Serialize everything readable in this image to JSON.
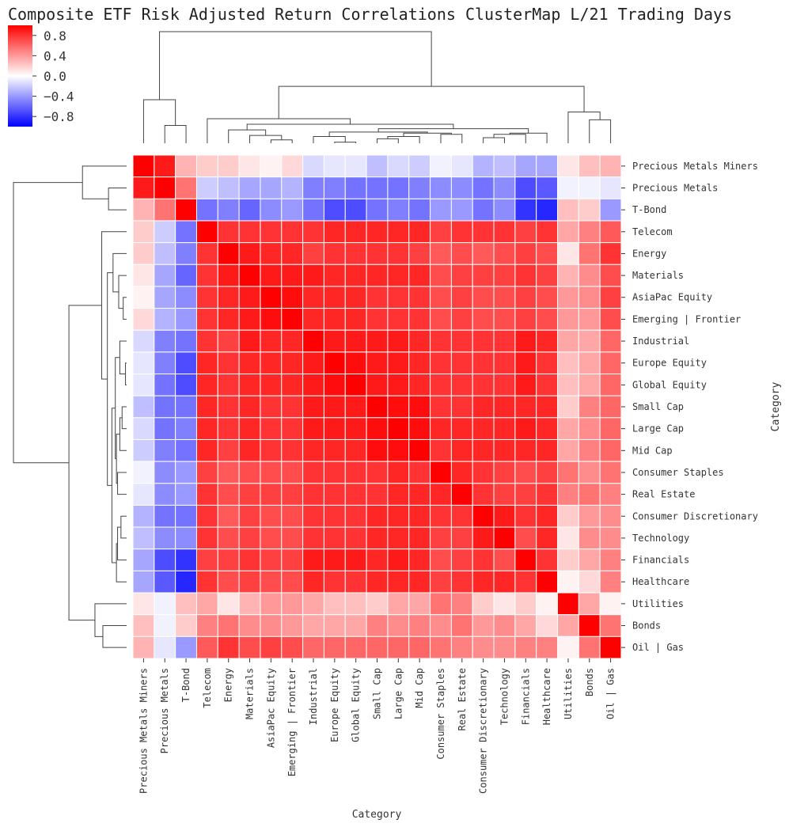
{
  "chart_data": {
    "type": "heatmap",
    "title": "Composite ETF Risk Adjusted Return Correlations ClusterMap L/21 Trading Days",
    "xlabel": "Category",
    "ylabel": "Category",
    "colormap": "bwr",
    "colors": {
      "low": "#0000ff",
      "mid": "#ffffff",
      "high": "#ff0000",
      "grid": "#ffffff",
      "dendrogram": "#444444"
    },
    "vmin": -1.0,
    "vmax": 1.0,
    "colorbar_ticks": [
      0.8,
      0.4,
      0.0,
      -0.4,
      -0.8
    ],
    "colorbar_tick_labels": [
      "0.8",
      "0.4",
      "0.0",
      "−0.4",
      "−0.8"
    ],
    "categories": [
      "Precious Metals Miners",
      "Precious Metals",
      "T-Bond",
      "Telecom",
      "Energy",
      "Materials",
      "AsiaPac Equity",
      "Emerging | Frontier",
      "Industrial",
      "Europe Equity",
      "Global Equity",
      "Small Cap",
      "Large Cap",
      "Mid Cap",
      "Consumer Staples",
      "Real Estate",
      "Consumer Discretionary",
      "Technology",
      "Financials",
      "Healthcare",
      "Utilities",
      "Bonds",
      "Oil | Gas"
    ],
    "values": [
      [
        1.0,
        0.9,
        0.3,
        0.2,
        0.2,
        0.1,
        0.05,
        0.15,
        -0.15,
        -0.1,
        -0.1,
        -0.25,
        -0.15,
        -0.2,
        -0.05,
        -0.1,
        -0.3,
        -0.25,
        -0.35,
        -0.35,
        0.1,
        0.25,
        0.3
      ],
      [
        0.9,
        1.0,
        0.55,
        -0.2,
        -0.25,
        -0.35,
        -0.35,
        -0.3,
        -0.5,
        -0.5,
        -0.55,
        -0.55,
        -0.55,
        -0.5,
        -0.45,
        -0.45,
        -0.55,
        -0.45,
        -0.7,
        -0.65,
        -0.05,
        -0.05,
        -0.1
      ],
      [
        0.3,
        0.55,
        1.0,
        -0.55,
        -0.5,
        -0.6,
        -0.45,
        -0.4,
        -0.55,
        -0.7,
        -0.7,
        -0.55,
        -0.5,
        -0.55,
        -0.4,
        -0.4,
        -0.55,
        -0.45,
        -0.8,
        -0.85,
        0.25,
        0.2,
        -0.4
      ],
      [
        0.2,
        -0.2,
        -0.55,
        1.0,
        0.8,
        0.8,
        0.8,
        0.8,
        0.8,
        0.85,
        0.85,
        0.85,
        0.85,
        0.85,
        0.75,
        0.8,
        0.8,
        0.8,
        0.75,
        0.8,
        0.35,
        0.5,
        0.65
      ],
      [
        0.2,
        -0.25,
        -0.5,
        0.8,
        1.0,
        0.9,
        0.85,
        0.85,
        0.75,
        0.8,
        0.8,
        0.8,
        0.8,
        0.75,
        0.65,
        0.7,
        0.65,
        0.7,
        0.75,
        0.7,
        0.1,
        0.55,
        0.8
      ],
      [
        0.1,
        -0.35,
        -0.6,
        0.8,
        0.9,
        1.0,
        0.9,
        0.9,
        0.9,
        0.85,
        0.85,
        0.85,
        0.85,
        0.85,
        0.7,
        0.75,
        0.75,
        0.75,
        0.8,
        0.75,
        0.3,
        0.45,
        0.7
      ],
      [
        0.05,
        -0.35,
        -0.45,
        0.8,
        0.85,
        0.9,
        1.0,
        0.95,
        0.85,
        0.85,
        0.85,
        0.8,
        0.8,
        0.8,
        0.7,
        0.75,
        0.7,
        0.7,
        0.75,
        0.7,
        0.4,
        0.45,
        0.75
      ],
      [
        0.15,
        -0.3,
        -0.4,
        0.8,
        0.85,
        0.9,
        0.95,
        1.0,
        0.85,
        0.85,
        0.85,
        0.8,
        0.8,
        0.8,
        0.7,
        0.75,
        0.7,
        0.7,
        0.75,
        0.7,
        0.4,
        0.4,
        0.7
      ],
      [
        -0.15,
        -0.5,
        -0.55,
        0.8,
        0.75,
        0.9,
        0.85,
        0.85,
        1.0,
        0.9,
        0.9,
        0.9,
        0.9,
        0.85,
        0.8,
        0.8,
        0.8,
        0.8,
        0.9,
        0.85,
        0.35,
        0.35,
        0.6
      ],
      [
        -0.1,
        -0.5,
        -0.7,
        0.85,
        0.8,
        0.85,
        0.85,
        0.85,
        0.9,
        1.0,
        0.95,
        0.9,
        0.9,
        0.85,
        0.8,
        0.8,
        0.8,
        0.8,
        0.9,
        0.8,
        0.25,
        0.35,
        0.6
      ],
      [
        -0.1,
        -0.55,
        -0.7,
        0.85,
        0.8,
        0.85,
        0.85,
        0.85,
        0.9,
        0.95,
        1.0,
        0.9,
        0.9,
        0.85,
        0.8,
        0.8,
        0.8,
        0.8,
        0.9,
        0.8,
        0.25,
        0.35,
        0.6
      ],
      [
        -0.25,
        -0.55,
        -0.55,
        0.85,
        0.8,
        0.85,
        0.8,
        0.8,
        0.9,
        0.9,
        0.9,
        1.0,
        0.95,
        0.95,
        0.8,
        0.8,
        0.85,
        0.85,
        0.85,
        0.85,
        0.2,
        0.5,
        0.6
      ],
      [
        -0.15,
        -0.55,
        -0.5,
        0.85,
        0.8,
        0.85,
        0.8,
        0.8,
        0.9,
        0.9,
        0.9,
        0.95,
        1.0,
        0.95,
        0.85,
        0.85,
        0.85,
        0.85,
        0.9,
        0.85,
        0.35,
        0.45,
        0.6
      ],
      [
        -0.2,
        -0.5,
        -0.55,
        0.85,
        0.75,
        0.85,
        0.8,
        0.8,
        0.85,
        0.85,
        0.85,
        0.95,
        0.95,
        1.0,
        0.8,
        0.85,
        0.85,
        0.85,
        0.85,
        0.85,
        0.35,
        0.5,
        0.6
      ],
      [
        -0.05,
        -0.45,
        -0.4,
        0.75,
        0.65,
        0.7,
        0.7,
        0.7,
        0.8,
        0.8,
        0.8,
        0.8,
        0.85,
        0.8,
        1.0,
        0.85,
        0.8,
        0.75,
        0.7,
        0.75,
        0.55,
        0.45,
        0.55
      ],
      [
        -0.1,
        -0.45,
        -0.4,
        0.8,
        0.7,
        0.75,
        0.75,
        0.75,
        0.8,
        0.8,
        0.8,
        0.8,
        0.85,
        0.85,
        0.85,
        1.0,
        0.8,
        0.75,
        0.75,
        0.8,
        0.5,
        0.55,
        0.5
      ],
      [
        -0.3,
        -0.55,
        -0.55,
        0.8,
        0.65,
        0.75,
        0.7,
        0.7,
        0.8,
        0.8,
        0.8,
        0.85,
        0.85,
        0.85,
        0.8,
        0.8,
        1.0,
        0.9,
        0.8,
        0.85,
        0.2,
        0.4,
        0.45
      ],
      [
        -0.25,
        -0.45,
        -0.45,
        0.8,
        0.7,
        0.75,
        0.7,
        0.7,
        0.8,
        0.8,
        0.8,
        0.85,
        0.85,
        0.85,
        0.75,
        0.75,
        0.9,
        1.0,
        0.7,
        0.85,
        0.1,
        0.45,
        0.45
      ],
      [
        -0.35,
        -0.7,
        -0.8,
        0.75,
        0.75,
        0.8,
        0.75,
        0.75,
        0.9,
        0.9,
        0.9,
        0.85,
        0.9,
        0.85,
        0.7,
        0.75,
        0.8,
        0.7,
        1.0,
        0.8,
        0.2,
        0.35,
        0.5
      ],
      [
        -0.35,
        -0.65,
        -0.85,
        0.8,
        0.7,
        0.75,
        0.7,
        0.7,
        0.85,
        0.8,
        0.8,
        0.85,
        0.85,
        0.85,
        0.75,
        0.8,
        0.85,
        0.85,
        0.8,
        1.0,
        0.05,
        0.15,
        0.5
      ],
      [
        0.1,
        -0.05,
        0.25,
        0.35,
        0.1,
        0.3,
        0.4,
        0.4,
        0.35,
        0.25,
        0.25,
        0.2,
        0.35,
        0.35,
        0.55,
        0.5,
        0.2,
        0.1,
        0.2,
        0.05,
        1.0,
        0.35,
        0.05
      ],
      [
        0.25,
        -0.05,
        0.2,
        0.5,
        0.55,
        0.45,
        0.45,
        0.4,
        0.35,
        0.35,
        0.35,
        0.5,
        0.45,
        0.5,
        0.45,
        0.55,
        0.4,
        0.45,
        0.35,
        0.15,
        0.35,
        1.0,
        0.55
      ],
      [
        0.3,
        -0.1,
        -0.4,
        0.65,
        0.8,
        0.7,
        0.75,
        0.7,
        0.6,
        0.6,
        0.6,
        0.6,
        0.6,
        0.6,
        0.55,
        0.5,
        0.45,
        0.45,
        0.5,
        0.5,
        0.05,
        0.55,
        1.0
      ]
    ]
  }
}
